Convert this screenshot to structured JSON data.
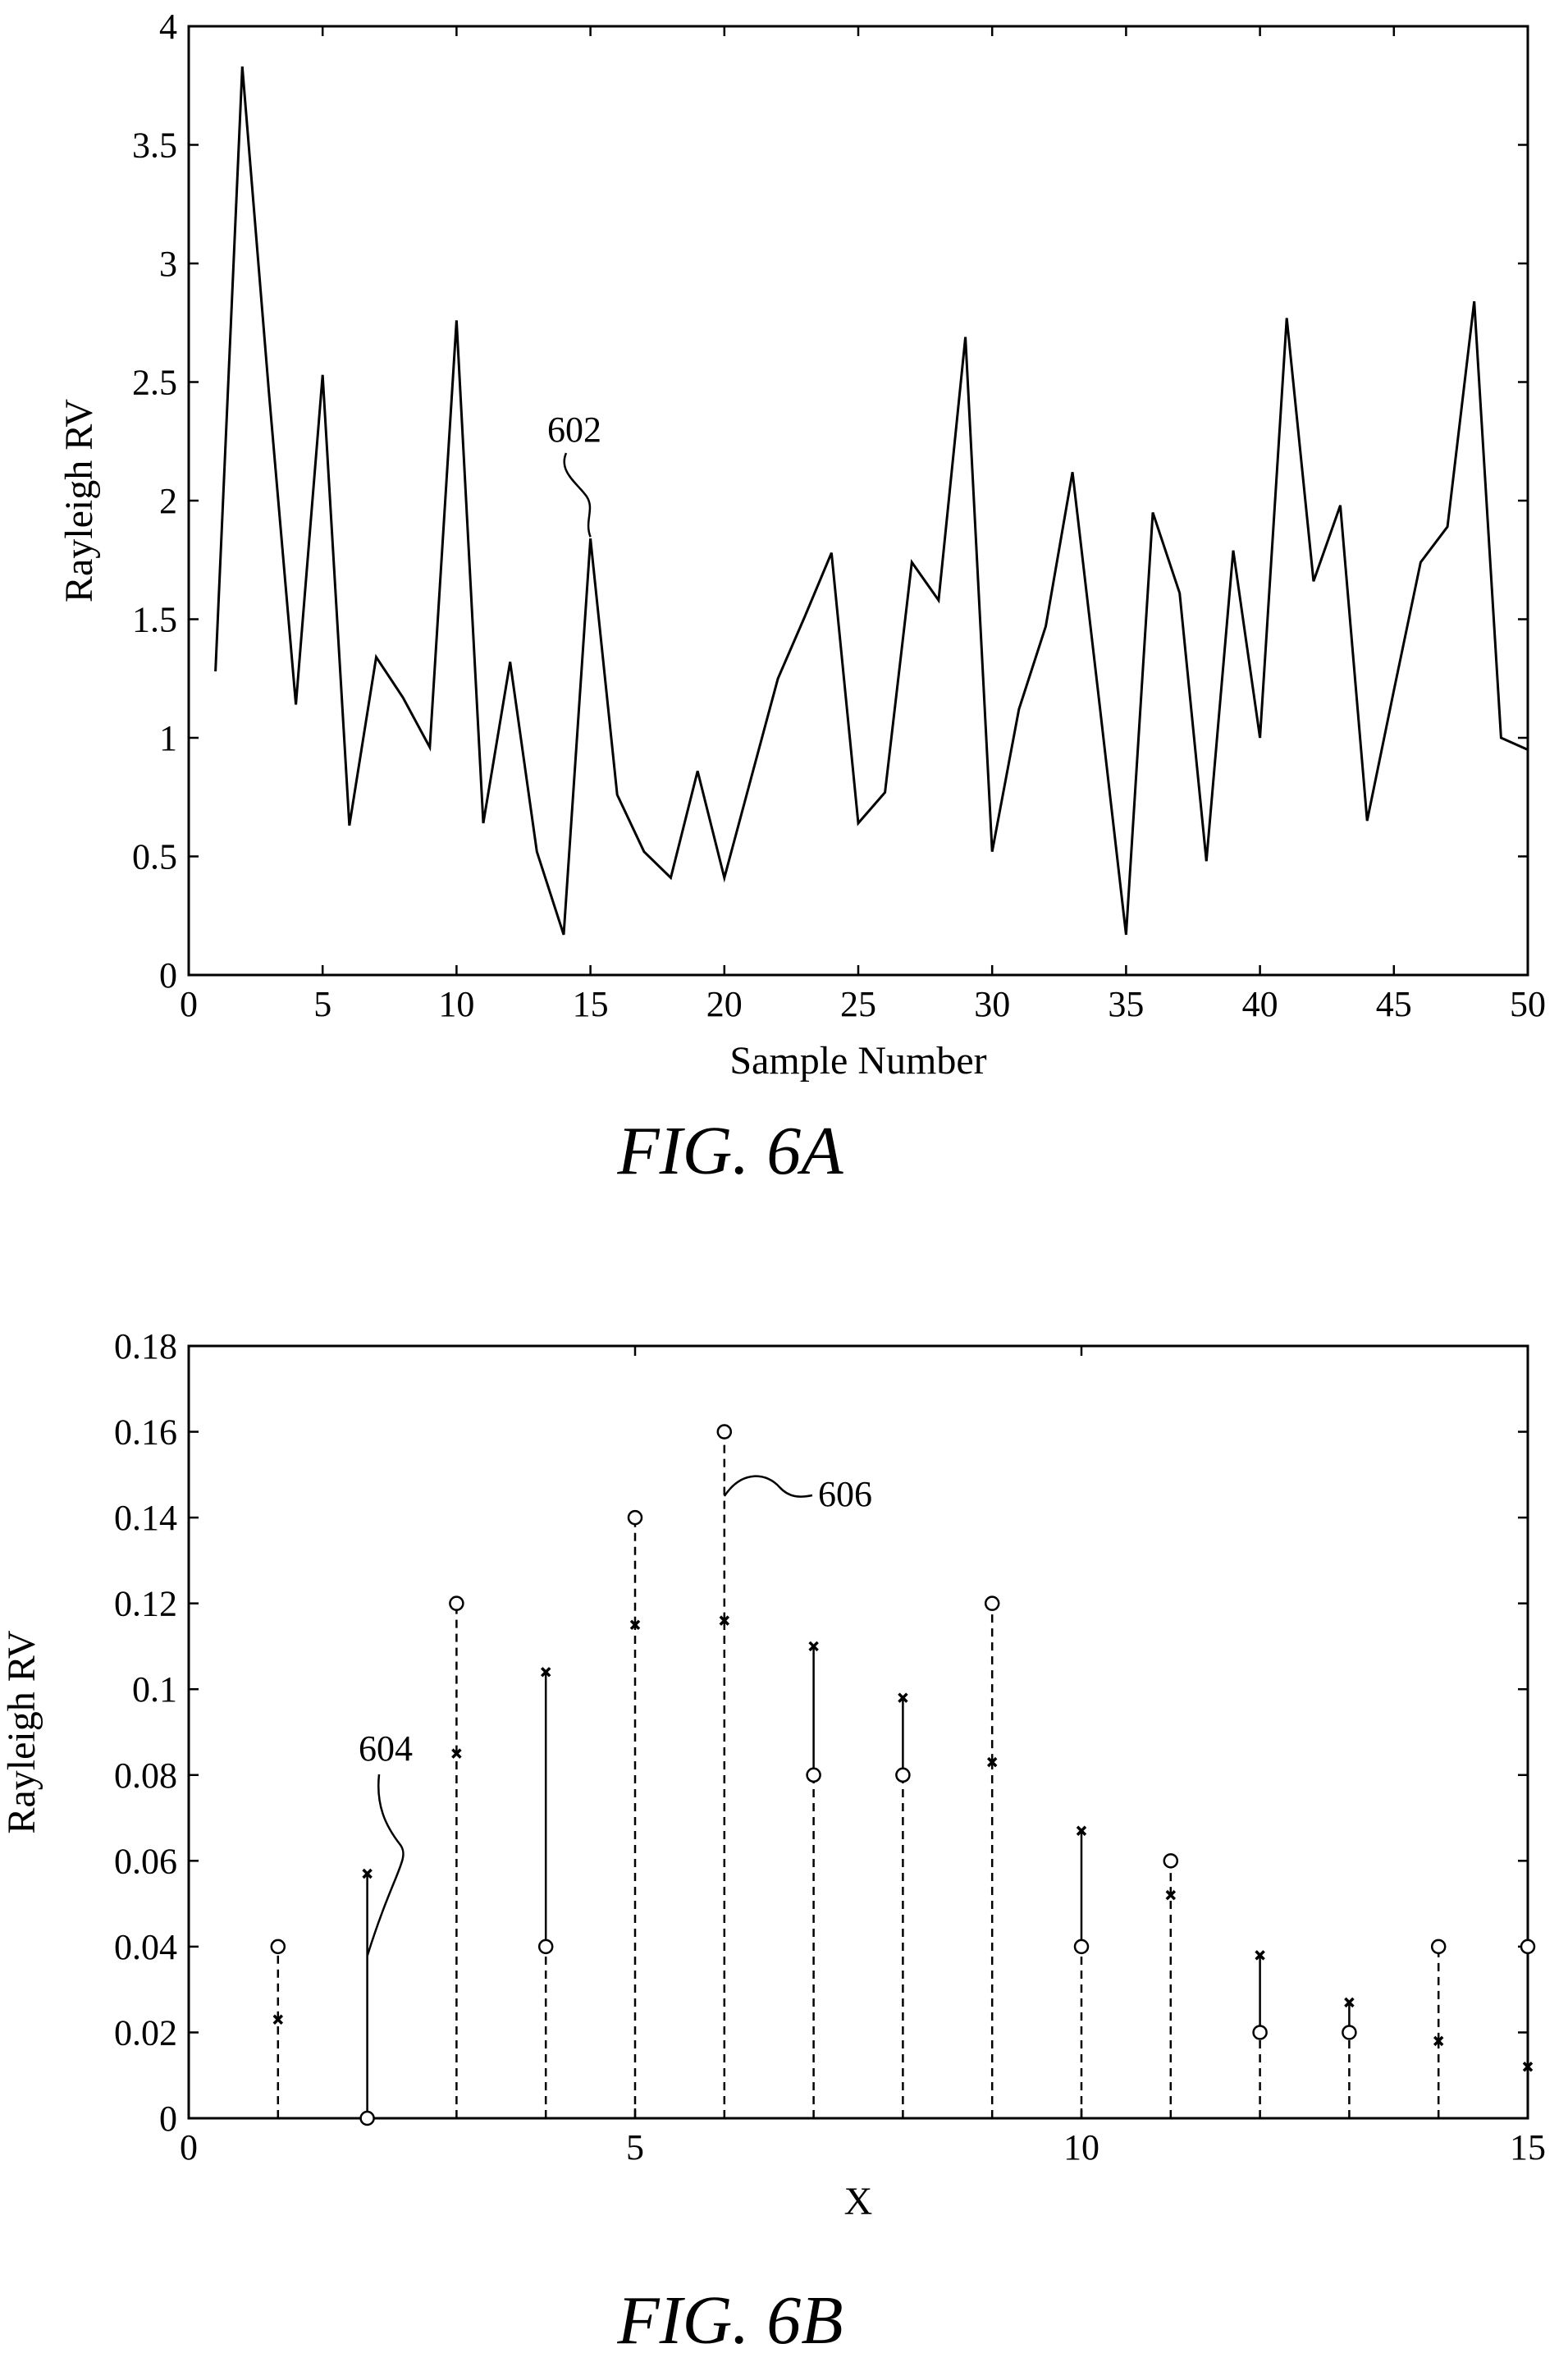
{
  "chart_data": [
    {
      "type": "line",
      "caption": "FIG. 6A",
      "xlabel": "Sample Number",
      "ylabel": "Rayleigh RV",
      "xlim": [
        0,
        50
      ],
      "ylim": [
        0,
        4
      ],
      "xticks": [
        0,
        5,
        10,
        15,
        20,
        25,
        30,
        35,
        40,
        45,
        50
      ],
      "yticks": [
        0,
        0.5,
        1,
        1.5,
        2,
        2.5,
        3,
        3.5,
        4
      ],
      "annotation": {
        "text": "602",
        "x": 15,
        "y": 1.84
      },
      "series": [
        {
          "x": [
            1,
            2,
            3,
            4,
            5,
            6,
            7,
            8,
            9,
            10,
            11,
            12,
            13,
            14,
            15,
            16,
            17,
            18,
            19,
            20,
            21,
            22,
            23,
            24,
            25,
            26,
            27,
            28,
            29,
            30,
            31,
            32,
            33,
            34,
            35,
            36,
            37,
            38,
            39,
            40,
            41,
            42,
            43,
            44,
            45,
            46,
            47,
            48,
            49,
            50
          ],
          "y": [
            1.28,
            3.83,
            2.45,
            1.14,
            2.53,
            0.63,
            1.34,
            1.17,
            0.96,
            2.76,
            0.64,
            1.32,
            0.52,
            0.17,
            1.84,
            0.76,
            0.52,
            0.41,
            0.86,
            0.41,
            0.83,
            1.25,
            1.51,
            1.78,
            0.64,
            0.77,
            1.74,
            1.58,
            2.69,
            0.52,
            1.12,
            1.47,
            2.12,
            1.15,
            0.17,
            1.95,
            1.61,
            0.48,
            1.79,
            1.0,
            2.77,
            1.66,
            1.98,
            0.65,
            1.2,
            1.74,
            1.89,
            2.84,
            1.0,
            0.95
          ]
        }
      ]
    },
    {
      "type": "scatter",
      "caption": "FIG. 6B",
      "xlabel": "X",
      "ylabel": "Rayleigh RV",
      "xlim": [
        0,
        15
      ],
      "ylim": [
        0,
        0.18
      ],
      "xticks": [
        0,
        5,
        10,
        15
      ],
      "yticks": [
        0,
        0.02,
        0.04,
        0.06,
        0.08,
        0.1,
        0.12,
        0.14,
        0.16,
        0.18
      ],
      "annotations": [
        {
          "text": "604",
          "x": 2,
          "y": 0.056
        },
        {
          "text": "606",
          "x": 6,
          "y": 0.145
        }
      ],
      "x": [
        1,
        2,
        3,
        4,
        5,
        6,
        7,
        8,
        9,
        10,
        11,
        12,
        13,
        14,
        15
      ],
      "series": [
        {
          "marker": "circle",
          "values": [
            0.04,
            0.0,
            0.12,
            0.04,
            0.14,
            0.16,
            0.08,
            0.08,
            0.12,
            0.04,
            0.06,
            0.02,
            0.02,
            0.04,
            0.04
          ]
        },
        {
          "marker": "x",
          "values": [
            0.023,
            0.057,
            0.085,
            0.104,
            0.115,
            0.116,
            0.11,
            0.098,
            0.083,
            0.067,
            0.052,
            0.038,
            0.027,
            0.018,
            0.012
          ]
        }
      ]
    }
  ]
}
